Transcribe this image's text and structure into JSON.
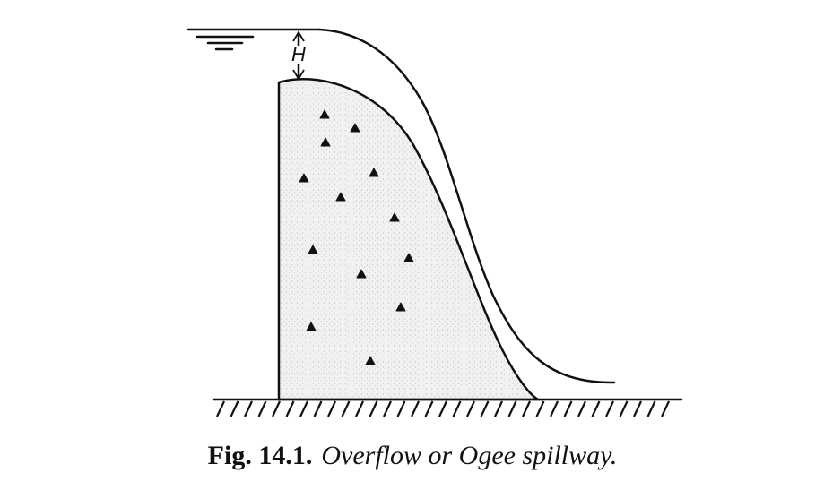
{
  "labels": {
    "head": "H"
  },
  "caption": {
    "number": "Fig. 14.1.",
    "text": "Overflow or Ogee spillway."
  }
}
